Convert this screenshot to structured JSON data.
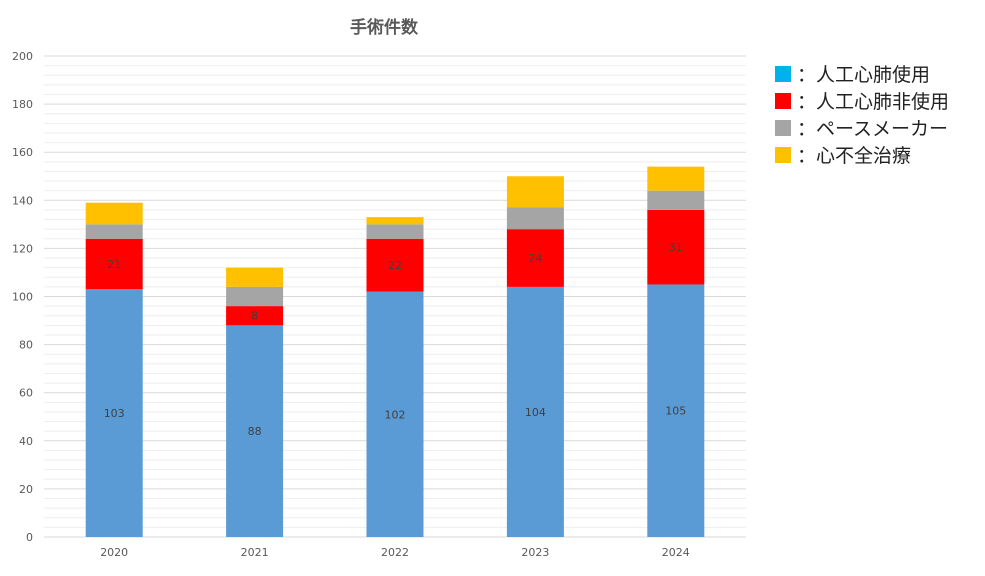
{
  "chart_data": {
    "type": "bar",
    "stacked": true,
    "title": "手術件数",
    "xlabel": "",
    "ylabel": "",
    "ylim": [
      0,
      200
    ],
    "ytick_step": 20,
    "yticks": [
      "0",
      "20",
      "40",
      "60",
      "80",
      "100",
      "120",
      "140",
      "160",
      "180",
      "200"
    ],
    "grid": true,
    "legend_position": "right",
    "categories": [
      "2020",
      "2021",
      "2022",
      "2023",
      "2024"
    ],
    "series": [
      {
        "name": "人工心肺使用",
        "color": "#5b9bd5",
        "values": [
          103,
          88,
          102,
          104,
          105
        ],
        "labels": [
          "103",
          "88",
          "102",
          "104",
          "105"
        ]
      },
      {
        "name": "人工心肺非使用",
        "color": "#ff0000",
        "values": [
          21,
          8,
          22,
          24,
          31
        ],
        "labels": [
          "21",
          "8",
          "22",
          "24",
          "31"
        ]
      },
      {
        "name": "ペースメーカー",
        "color": "#a5a5a5",
        "values": [
          6,
          8,
          6,
          9,
          8
        ],
        "labels": null
      },
      {
        "name": "心不全治療",
        "color": "#ffc000",
        "values": [
          9,
          8,
          3,
          13,
          10
        ],
        "labels": null
      }
    ]
  },
  "legend": {
    "items": [
      {
        "swatch_color": "#00b0f0",
        "text": "：人工心肺使用"
      },
      {
        "swatch_color": "#ff0000",
        "text": "：人工心肺非使用"
      },
      {
        "swatch_color": "#a5a5a5",
        "text": "：ペースメーカー"
      },
      {
        "swatch_color": "#ffc000",
        "text": "：心不全治療"
      }
    ]
  }
}
